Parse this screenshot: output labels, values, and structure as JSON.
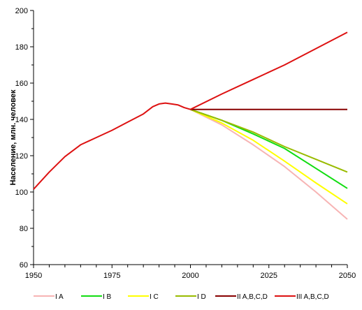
{
  "chart_data": {
    "type": "line",
    "ylabel": "Население, млн. человек",
    "xlim": [
      1950,
      2050
    ],
    "ylim": [
      60,
      200
    ],
    "x_ticks": [
      1950,
      1975,
      2000,
      2025,
      2050
    ],
    "y_ticks": [
      60,
      80,
      100,
      120,
      140,
      160,
      180,
      200
    ],
    "grid": false,
    "legend": "bottom",
    "historical": {
      "color": "#dd1111",
      "points": [
        [
          1950,
          101.5
        ],
        [
          1955,
          111
        ],
        [
          1960,
          119.5
        ],
        [
          1965,
          126
        ],
        [
          1970,
          130
        ],
        [
          1975,
          134
        ],
        [
          1980,
          138.5
        ],
        [
          1985,
          143
        ],
        [
          1988,
          147
        ],
        [
          1990,
          148.5
        ],
        [
          1992,
          149
        ],
        [
          1994,
          148.5
        ],
        [
          1996,
          148
        ],
        [
          1998,
          146.5
        ],
        [
          2000,
          145.5
        ]
      ]
    },
    "series": [
      {
        "name": "I A",
        "color": "#f7b4b4",
        "points": [
          [
            2000,
            145.5
          ],
          [
            2010,
            137
          ],
          [
            2020,
            126
          ],
          [
            2030,
            114
          ],
          [
            2040,
            100
          ],
          [
            2050,
            85
          ]
        ]
      },
      {
        "name": "I B",
        "color": "#11dd11",
        "points": [
          [
            2000,
            145.5
          ],
          [
            2010,
            139.5
          ],
          [
            2020,
            132
          ],
          [
            2030,
            124
          ],
          [
            2040,
            113
          ],
          [
            2050,
            102
          ]
        ]
      },
      {
        "name": "I C",
        "color": "#ffff00",
        "points": [
          [
            2000,
            145.5
          ],
          [
            2010,
            138
          ],
          [
            2020,
            128.5
          ],
          [
            2030,
            117
          ],
          [
            2040,
            105
          ],
          [
            2050,
            93.5
          ]
        ]
      },
      {
        "name": "I D",
        "color": "#99bb00",
        "points": [
          [
            2000,
            145.5
          ],
          [
            2010,
            139.5
          ],
          [
            2020,
            133
          ],
          [
            2030,
            125
          ],
          [
            2040,
            118
          ],
          [
            2050,
            111
          ]
        ]
      },
      {
        "name": "II A,B,C,D",
        "color": "#880000",
        "points": [
          [
            2000,
            145.5
          ],
          [
            2050,
            145.5
          ]
        ]
      },
      {
        "name": "III A,B,C,D",
        "color": "#dd1111",
        "points": [
          [
            2000,
            145.5
          ],
          [
            2010,
            154
          ],
          [
            2020,
            162
          ],
          [
            2030,
            170
          ],
          [
            2040,
            179
          ],
          [
            2050,
            188
          ]
        ]
      }
    ]
  }
}
